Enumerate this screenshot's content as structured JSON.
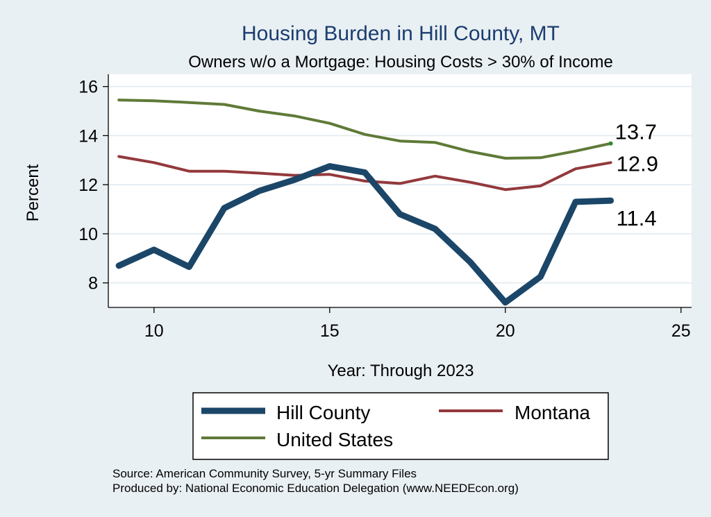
{
  "chart_data": {
    "type": "line",
    "title": "Housing Burden in Hill County, MT",
    "subtitle": "Owners w/o a Mortgage: Housing Costs > 30% of Income",
    "xlabel": "Year: Through 2023",
    "ylabel": "Percent",
    "xlim": [
      8.7,
      25.3
    ],
    "ylim": [
      7.0,
      16.5
    ],
    "xticks": [
      10,
      15,
      20,
      25
    ],
    "yticks": [
      8,
      10,
      12,
      14,
      16
    ],
    "grid": true,
    "legend_position": "bottom",
    "x": [
      9,
      10,
      11,
      12,
      13,
      14,
      15,
      16,
      17,
      18,
      19,
      20,
      21,
      22,
      23
    ],
    "series": [
      {
        "name": "Hill County",
        "color": "#1b4668",
        "values": [
          8.7,
          9.35,
          8.65,
          11.05,
          11.75,
          12.2,
          12.75,
          12.5,
          10.8,
          10.2,
          8.85,
          7.2,
          8.25,
          11.3,
          11.35
        ],
        "end_label": "11.4"
      },
      {
        "name": "Montana",
        "color": "#93393d",
        "values": [
          13.15,
          12.9,
          12.55,
          12.55,
          12.47,
          12.38,
          12.42,
          12.15,
          12.05,
          12.35,
          12.1,
          11.8,
          11.95,
          12.65,
          12.9
        ],
        "end_label": "12.9"
      },
      {
        "name": "United States",
        "color": "#5f7a37",
        "values": [
          15.45,
          15.42,
          15.35,
          15.27,
          15.0,
          14.8,
          14.5,
          14.05,
          13.78,
          13.72,
          13.35,
          13.08,
          13.1,
          13.37,
          13.68
        ],
        "end_label": "13.7"
      }
    ]
  },
  "source": {
    "line1": "Source: American Community Survey, 5-yr Summary Files",
    "line2": "Produced by: National Economic Education Delegation (www.NEEDEcon.org)"
  }
}
